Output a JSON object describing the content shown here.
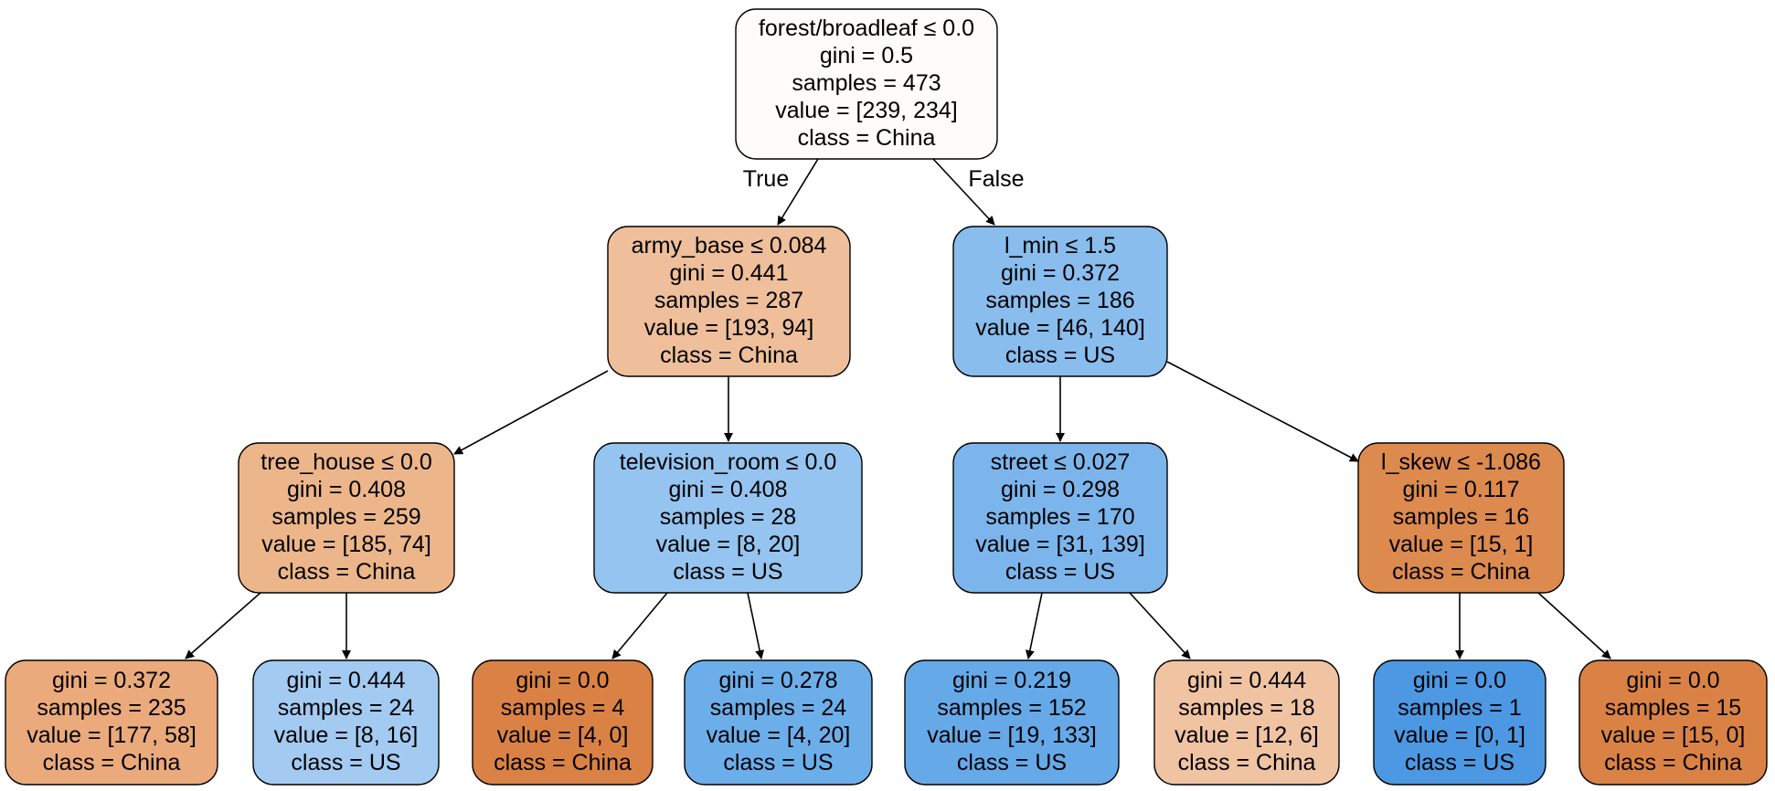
{
  "nodes": [
    {
      "id": "n0",
      "lines": [
        "forest/broadleaf ≤ 0.0",
        "gini = 0.5",
        "samples = 473",
        "value = [239, 234]",
        "class = China"
      ],
      "fill": "#fefcfb"
    },
    {
      "id": "n1",
      "lines": [
        "army_base ≤ 0.084",
        "gini = 0.441",
        "samples = 287",
        "value = [193, 94]",
        "class = China"
      ],
      "fill": "#eebf9a"
    },
    {
      "id": "n2",
      "lines": [
        "l_min ≤ 1.5",
        "gini = 0.372",
        "samples = 186",
        "value = [46, 140]",
        "class = US"
      ],
      "fill": "#89bdee"
    },
    {
      "id": "n3",
      "lines": [
        "tree_house ≤ 0.0",
        "gini = 0.408",
        "samples = 259",
        "value = [185, 74]",
        "class = China"
      ],
      "fill": "#ecb68a"
    },
    {
      "id": "n4",
      "lines": [
        "television_room ≤ 0.0",
        "gini = 0.408",
        "samples = 28",
        "value = [8, 20]",
        "class = US"
      ],
      "fill": "#94c4ef"
    },
    {
      "id": "n5",
      "lines": [
        "street ≤ 0.027",
        "gini = 0.298",
        "samples = 170",
        "value = [31, 139]",
        "class = US"
      ],
      "fill": "#7cb5ec"
    },
    {
      "id": "n6",
      "lines": [
        "l_skew ≤ -1.086",
        "gini = 0.117",
        "samples = 16",
        "value = [15, 1]",
        "class = China"
      ],
      "fill": "#dd8a4f"
    },
    {
      "id": "n7",
      "lines": [
        "gini = 0.372",
        "samples = 235",
        "value = [177, 58]",
        "class = China"
      ],
      "fill": "#ebaa7b"
    },
    {
      "id": "n8",
      "lines": [
        "gini = 0.444",
        "samples = 24",
        "value = [8, 16]",
        "class = US"
      ],
      "fill": "#a3cbf2"
    },
    {
      "id": "n9",
      "lines": [
        "gini = 0.0",
        "samples = 4",
        "value = [4, 0]",
        "class = China"
      ],
      "fill": "#da8245"
    },
    {
      "id": "n10",
      "lines": [
        "gini = 0.278",
        "samples = 24",
        "value = [4, 20]",
        "class = US"
      ],
      "fill": "#6caee9"
    },
    {
      "id": "n11",
      "lines": [
        "gini = 0.219",
        "samples = 152",
        "value = [19, 133]",
        "class = US"
      ],
      "fill": "#66a9e8"
    },
    {
      "id": "n12",
      "lines": [
        "gini = 0.444",
        "samples = 18",
        "value = [12, 6]",
        "class = China"
      ],
      "fill": "#f0c3a2"
    },
    {
      "id": "n13",
      "lines": [
        "gini = 0.0",
        "samples = 1",
        "value = [0, 1]",
        "class = US"
      ],
      "fill": "#4d98e2"
    },
    {
      "id": "n14",
      "lines": [
        "gini = 0.0",
        "samples = 15",
        "value = [15, 0]",
        "class = China"
      ],
      "fill": "#da8245"
    }
  ],
  "edges": [
    {
      "from": "n0",
      "to": "n1",
      "label": "True"
    },
    {
      "from": "n0",
      "to": "n2",
      "label": "False"
    },
    {
      "from": "n1",
      "to": "n3",
      "label": ""
    },
    {
      "from": "n1",
      "to": "n4",
      "label": ""
    },
    {
      "from": "n2",
      "to": "n5",
      "label": ""
    },
    {
      "from": "n2",
      "to": "n6",
      "label": ""
    },
    {
      "from": "n3",
      "to": "n7",
      "label": ""
    },
    {
      "from": "n3",
      "to": "n8",
      "label": ""
    },
    {
      "from": "n4",
      "to": "n9",
      "label": ""
    },
    {
      "from": "n4",
      "to": "n10",
      "label": ""
    },
    {
      "from": "n5",
      "to": "n11",
      "label": ""
    },
    {
      "from": "n5",
      "to": "n12",
      "label": ""
    },
    {
      "from": "n6",
      "to": "n13",
      "label": ""
    },
    {
      "from": "n6",
      "to": "n14",
      "label": ""
    }
  ]
}
